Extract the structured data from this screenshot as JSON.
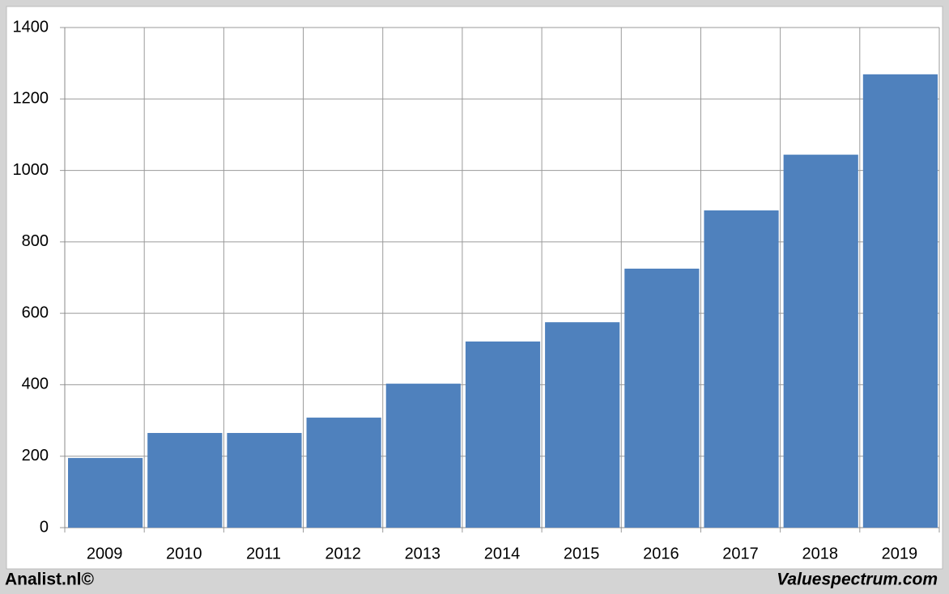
{
  "chart_data": {
    "type": "bar",
    "categories": [
      "2009",
      "2010",
      "2011",
      "2012",
      "2013",
      "2014",
      "2015",
      "2016",
      "2017",
      "2018",
      "2019"
    ],
    "values": [
      195,
      265,
      265,
      308,
      403,
      521,
      575,
      725,
      888,
      1044,
      1269
    ],
    "color": "#4f81bd",
    "ylim": [
      0,
      1400
    ],
    "yticks": [
      0,
      200,
      400,
      600,
      800,
      1000,
      1200,
      1400
    ],
    "grid": true,
    "footer_left": "Analist.nl©",
    "footer_right": "Valuespectrum.com"
  }
}
